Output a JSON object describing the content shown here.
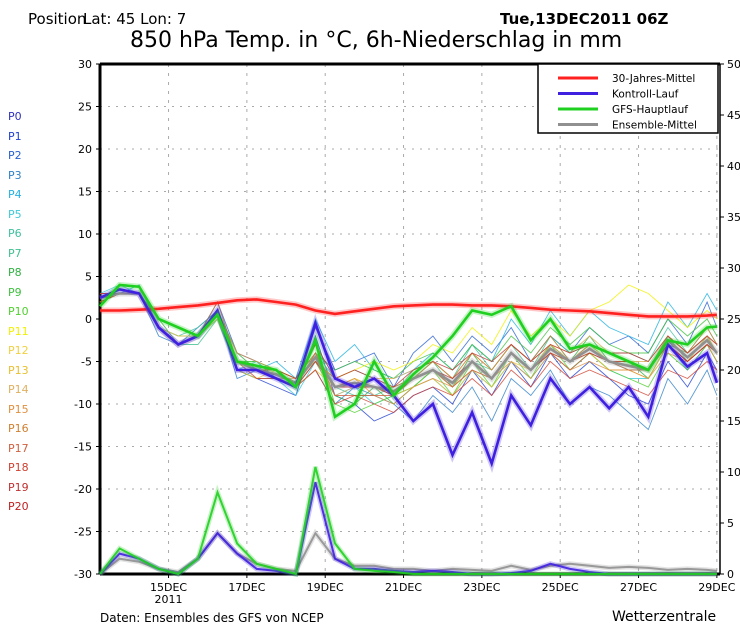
{
  "header": {
    "position_label": "Position",
    "location": "Lat: 45 Lon: 7",
    "datetime": "Tue,13DEC2011 06Z",
    "title": "850 hPa Temp. in °C, 6h-Niederschlag in mm"
  },
  "footer": {
    "source": "Daten: Ensembles des GFS von NCEP",
    "brand": "Wetterzentrale"
  },
  "members": [
    {
      "label": "P0",
      "color": "#3030c0"
    },
    {
      "label": "P1",
      "color": "#2040d0"
    },
    {
      "label": "P2",
      "color": "#2860d0"
    },
    {
      "label": "P3",
      "color": "#3080c8"
    },
    {
      "label": "P4",
      "color": "#20b0e0"
    },
    {
      "label": "P5",
      "color": "#40c8d8"
    },
    {
      "label": "P6",
      "color": "#40c0a0"
    },
    {
      "label": "P7",
      "color": "#40c090"
    },
    {
      "label": "P8",
      "color": "#30b040"
    },
    {
      "label": "P9",
      "color": "#40c040"
    },
    {
      "label": "P10",
      "color": "#50d030"
    },
    {
      "label": "P11",
      "color": "#f0f000"
    },
    {
      "label": "P12",
      "color": "#f0d040"
    },
    {
      "label": "P13",
      "color": "#e8c030"
    },
    {
      "label": "P14",
      "color": "#e0b060"
    },
    {
      "label": "P15",
      "color": "#e09040"
    },
    {
      "label": "P16",
      "color": "#d08030"
    },
    {
      "label": "P17",
      "color": "#d06040"
    },
    {
      "label": "P18",
      "color": "#d04030"
    },
    {
      "label": "P19",
      "color": "#c03030"
    },
    {
      "label": "P20",
      "color": "#c02020"
    }
  ],
  "chart_data": {
    "type": "line",
    "title": "850 hPa Temp. in °C, 6h-Niederschlag in mm",
    "ylim": [
      -30,
      30
    ],
    "y2lim": [
      0,
      50
    ],
    "yticks": [
      "30",
      "25",
      "20",
      "15",
      "10",
      "5",
      "0",
      "-5",
      "-10",
      "-15",
      "-20",
      "-25",
      "-30"
    ],
    "y2ticks": [
      "50",
      "45",
      "40",
      "35",
      "30",
      "25",
      "20",
      "15",
      "10",
      "5",
      "0"
    ],
    "xticks": [
      {
        "label": "15DEC",
        "sub": "2011",
        "day": 15
      },
      {
        "label": "17DEC",
        "day": 17
      },
      {
        "label": "19DEC",
        "day": 19
      },
      {
        "label": "21DEC",
        "day": 21
      },
      {
        "label": "23DEC",
        "day": 23
      },
      {
        "label": "25DEC",
        "day": 25
      },
      {
        "label": "27DEC",
        "day": 27
      },
      {
        "label": "29DEC",
        "day": 29
      }
    ],
    "xlim_days": [
      13.25,
      29.08
    ],
    "grid": true,
    "legend_position": "top-right",
    "times": [
      "13DEC 06Z",
      "13DEC 18Z",
      "14DEC 06Z",
      "14DEC 18Z",
      "15DEC 06Z",
      "15DEC 18Z",
      "16DEC 06Z",
      "16DEC 18Z",
      "17DEC 06Z",
      "17DEC 18Z",
      "18DEC 06Z",
      "18DEC 18Z",
      "19DEC 06Z",
      "19DEC 18Z",
      "20DEC 06Z",
      "20DEC 18Z",
      "21DEC 06Z",
      "21DEC 18Z",
      "22DEC 06Z",
      "22DEC 18Z",
      "23DEC 06Z",
      "23DEC 18Z",
      "24DEC 06Z",
      "24DEC 18Z",
      "25DEC 06Z",
      "25DEC 18Z",
      "26DEC 06Z",
      "26DEC 18Z",
      "27DEC 06Z",
      "27DEC 18Z",
      "28DEC 06Z",
      "28DEC 18Z",
      "29DEC 00Z"
    ],
    "series": [
      {
        "name": "30-Jahres-Mittel",
        "color": "#ff2020",
        "temp": [
          1,
          1,
          1.1,
          1.2,
          1.4,
          1.6,
          1.9,
          2.2,
          2.3,
          2,
          1.7,
          1,
          0.6,
          0.9,
          1.2,
          1.5,
          1.6,
          1.7,
          1.7,
          1.6,
          1.6,
          1.5,
          1.3,
          1.1,
          1,
          0.9,
          0.7,
          0.5,
          0.3,
          0.3,
          0.3,
          0.4,
          0.5
        ]
      },
      {
        "name": "Kontroll-Lauf",
        "color": "#4020e0",
        "temp": [
          2.5,
          3.5,
          3,
          -1,
          -3,
          -2,
          1,
          -6,
          -6,
          -7,
          -8,
          -0.5,
          -7,
          -8,
          -7,
          -9,
          -12,
          -10,
          -16,
          -11,
          -17,
          -9,
          -12.5,
          -7,
          -10,
          -8,
          -10.5,
          -8,
          -11.5,
          -3,
          -5.6,
          -4,
          -7.5
        ],
        "precip": [
          0,
          2,
          1.5,
          0.5,
          0,
          1.5,
          4,
          2,
          0.5,
          0.3,
          0,
          9,
          1.5,
          0.5,
          0.5,
          0.3,
          0.2,
          0.3,
          0.2,
          0,
          0,
          0.1,
          0.3,
          1,
          0.5,
          0.2,
          0,
          0,
          0,
          0,
          0,
          0,
          0
        ]
      },
      {
        "name": "GFS-Hauptlauf",
        "color": "#20d020",
        "temp": [
          1.5,
          4,
          3.8,
          0,
          -1,
          -2,
          0.5,
          -5,
          -5.5,
          -6,
          -8,
          -2.5,
          -11.5,
          -10,
          -5,
          -9,
          -6.5,
          -4.5,
          -2,
          1,
          0.5,
          1.5,
          -2.5,
          0,
          -3.5,
          -3,
          -4,
          -5,
          -6,
          -2.5,
          -3,
          -1,
          -0.9
        ],
        "precip": [
          0,
          2.5,
          1.5,
          0.5,
          0,
          1.5,
          8,
          3,
          1,
          0.5,
          0,
          10.5,
          3,
          0.5,
          0.3,
          0.2,
          0,
          0,
          0,
          0,
          0,
          0,
          0,
          0,
          0,
          0,
          0,
          0,
          0,
          0,
          0,
          0,
          0
        ]
      },
      {
        "name": "Ensemble-Mittel",
        "color": "#909090",
        "temp": [
          2.5,
          3,
          3,
          -1,
          -3,
          -2,
          0.5,
          -5,
          -6,
          -6.5,
          -7.5,
          -4.5,
          -8,
          -7.5,
          -8,
          -8.5,
          -7,
          -6,
          -7.5,
          -5,
          -7,
          -4,
          -6,
          -3.5,
          -5,
          -3.5,
          -5,
          -5.5,
          -6,
          -2.5,
          -4.5,
          -2.5,
          -4
        ],
        "precip": [
          0,
          1.5,
          1.2,
          0.5,
          0.2,
          1.5,
          4,
          2,
          1,
          0.5,
          0.3,
          4,
          1.5,
          0.8,
          0.8,
          0.5,
          0.5,
          0.3,
          0.5,
          0.4,
          0.3,
          0.8,
          0.4,
          0.8,
          1,
          0.8,
          0.6,
          0.7,
          0.6,
          0.4,
          0.5,
          0.4,
          0.3
        ]
      }
    ],
    "member_temps": [
      [
        2,
        3,
        3,
        -1,
        -3,
        -2,
        1,
        -6,
        -7,
        -8,
        -9,
        -2,
        -9,
        -10,
        -12,
        -11,
        -9,
        -8,
        -10,
        -6,
        -9,
        -5,
        -8,
        -4,
        -7,
        -5,
        -7,
        -9,
        -10,
        -5,
        -8,
        -4,
        -6
      ],
      [
        2,
        3,
        3,
        -1,
        -2,
        -2,
        2,
        -4,
        -5,
        -7,
        -8,
        -1,
        -6,
        -5,
        -4,
        -8,
        -4,
        -2,
        -5,
        -2,
        -4,
        -1,
        -5,
        -2,
        -4,
        -1,
        -3,
        -2,
        -4,
        0,
        -3,
        2,
        -1
      ],
      [
        3,
        3,
        3,
        -2,
        -3,
        -1,
        1,
        -7,
        -6,
        -6,
        -8,
        -6,
        -10,
        -8,
        -9,
        -10,
        -12,
        -9,
        -11,
        -8,
        -12,
        -7,
        -9,
        -6,
        -10,
        -8,
        -9,
        -11,
        -13,
        -7,
        -10,
        -6,
        -9
      ],
      [
        2,
        3,
        4,
        -1,
        -3,
        -2,
        1,
        -5,
        -6,
        -5,
        -7,
        0,
        -5,
        -3,
        -6,
        -7,
        -6,
        -4,
        -6,
        -3,
        -5,
        0,
        -3,
        1,
        -2,
        1,
        -1,
        -2,
        -3,
        2,
        -1,
        3,
        1
      ],
      [
        3,
        4,
        3,
        -1,
        -3,
        -2,
        0,
        -6,
        -5,
        -7,
        -9,
        -5,
        -9,
        -8,
        -10,
        -9,
        -8,
        -7,
        -9,
        -6,
        -8,
        -5,
        -7,
        -4,
        -6,
        -4,
        -6,
        -7,
        -7,
        -3,
        -6,
        -3,
        -5
      ],
      [
        2,
        3,
        3,
        -1,
        -2,
        -1,
        1,
        -5,
        -6,
        -6,
        -7,
        -4,
        -7,
        -6,
        -7,
        -9,
        -6,
        -5,
        -7,
        -3,
        -6,
        -3,
        -5,
        -2,
        -4,
        -3,
        -4,
        -4,
        -5,
        -1,
        -4,
        -1,
        -3
      ],
      [
        2,
        3,
        3,
        -1,
        -3,
        -3,
        0,
        -6,
        -7,
        -7,
        -8,
        -3,
        -8,
        -9,
        -9,
        -8,
        -7,
        -5,
        -8,
        -5,
        -6,
        -3,
        -6,
        -2,
        -5,
        -3,
        -5,
        -6,
        -6,
        -2,
        -5,
        -2,
        -4
      ],
      [
        3,
        3,
        3,
        0,
        -3,
        -2,
        1,
        -4,
        -6,
        -6,
        -7,
        -5,
        -9,
        -10,
        -8,
        -10,
        -8,
        -6,
        -8,
        -4,
        -7,
        -4,
        -6,
        -3,
        -5,
        -2,
        -5,
        -5,
        -7,
        -3,
        -4,
        -2,
        -4
      ],
      [
        2,
        3,
        3,
        -1,
        -3,
        -2,
        1,
        -5,
        -5,
        -6,
        -7,
        -4,
        -6,
        -5,
        -6,
        -7,
        -5,
        -4,
        -6,
        -3,
        -5,
        -2,
        -4,
        -1,
        -3,
        -1,
        -3,
        -4,
        -4,
        0,
        -2,
        0,
        -2
      ],
      [
        2,
        3,
        3,
        -1,
        -3,
        -2,
        1,
        -6,
        -6,
        -7,
        -8,
        -3,
        -10,
        -11,
        -10,
        -9,
        -8,
        -6,
        -9,
        -5,
        -8,
        -4,
        -7,
        -3,
        -6,
        -4,
        -6,
        -7,
        -8,
        -4,
        -6,
        -3,
        -5
      ],
      [
        2,
        3,
        3,
        -1,
        -3,
        -2,
        1,
        -5,
        -6,
        -6,
        -7,
        -5,
        -7,
        -6,
        -5,
        -6,
        -5,
        -3,
        -4,
        -1,
        -3,
        1,
        -2,
        0,
        -2,
        1,
        2,
        4,
        3,
        1,
        -1,
        1,
        0
      ],
      [
        3,
        3,
        3,
        -1,
        -2,
        -2,
        0,
        -5,
        -6,
        -7,
        -8,
        -6,
        -8,
        -7,
        -8,
        -9,
        -7,
        -6,
        -8,
        -5,
        -7,
        -4,
        -6,
        -4,
        -5,
        -3,
        -5,
        -5,
        -6,
        -3,
        -5,
        -3,
        -4
      ],
      [
        2,
        3,
        3,
        -1,
        -3,
        -2,
        1,
        -6,
        -7,
        -6,
        -8,
        -4,
        -8,
        -7,
        -8,
        -9,
        -8,
        -7,
        -9,
        -6,
        -8,
        -5,
        -6,
        -3,
        -5,
        -4,
        -6,
        -6,
        -7,
        -3,
        -5,
        -2,
        -4
      ],
      [
        2,
        3,
        3,
        -1,
        -3,
        -2,
        1,
        -5,
        -6,
        -7,
        -7,
        -5,
        -9,
        -8,
        -7,
        -7,
        -6,
        -5,
        -7,
        -4,
        -6,
        -3,
        -5,
        -3,
        -4,
        -2,
        -4,
        -5,
        -5,
        -2,
        -4,
        -2,
        -3
      ],
      [
        3,
        3,
        3,
        -1,
        -3,
        -2,
        1,
        -4,
        -5,
        -6,
        -7,
        -4,
        -8,
        -7,
        -9,
        -10,
        -8,
        -7,
        -8,
        -6,
        -7,
        -5,
        -7,
        -4,
        -6,
        -5,
        -6,
        -6,
        -7,
        -4,
        -5,
        -3,
        -5
      ],
      [
        2,
        3,
        3,
        -1,
        -3,
        -2,
        2,
        -5,
        -6,
        -6,
        -8,
        -5,
        -7,
        -8,
        -8,
        -8,
        -7,
        -5,
        -7,
        -4,
        -6,
        -3,
        -5,
        -2,
        -5,
        -3,
        -4,
        -5,
        -6,
        -2,
        -4,
        -1,
        -3
      ],
      [
        2,
        3,
        3,
        -1,
        -3,
        -2,
        1,
        -6,
        -6,
        -7,
        -8,
        -4,
        -9,
        -9,
        -9,
        -9,
        -7,
        -6,
        -8,
        -6,
        -7,
        -4,
        -6,
        -4,
        -6,
        -4,
        -5,
        -6,
        -6,
        -3,
        -5,
        -3,
        -4
      ],
      [
        2,
        3,
        3,
        -1,
        -3,
        -2,
        1,
        -5,
        -7,
        -7,
        -8,
        -6,
        -10,
        -9,
        -10,
        -11,
        -9,
        -8,
        -9,
        -7,
        -9,
        -6,
        -8,
        -5,
        -7,
        -6,
        -7,
        -8,
        -9,
        -6,
        -7,
        -5,
        -6
      ],
      [
        3,
        3,
        3,
        -1,
        -3,
        -2,
        1,
        -5,
        -6,
        -6,
        -7,
        -3,
        -7,
        -6,
        -7,
        -8,
        -6,
        -5,
        -6,
        -4,
        -5,
        -3,
        -5,
        -3,
        -4,
        -3,
        -4,
        -4,
        -5,
        -2,
        -4,
        -2,
        -3
      ],
      [
        2,
        3,
        3,
        -1,
        -3,
        -2,
        1,
        -6,
        -6,
        -7,
        -8,
        -5,
        -8,
        -8,
        -8,
        -9,
        -7,
        -6,
        -7,
        -5,
        -7,
        -4,
        -6,
        -4,
        -5,
        -4,
        -5,
        -5,
        -6,
        -3,
        -5,
        -3,
        -4
      ]
    ]
  }
}
